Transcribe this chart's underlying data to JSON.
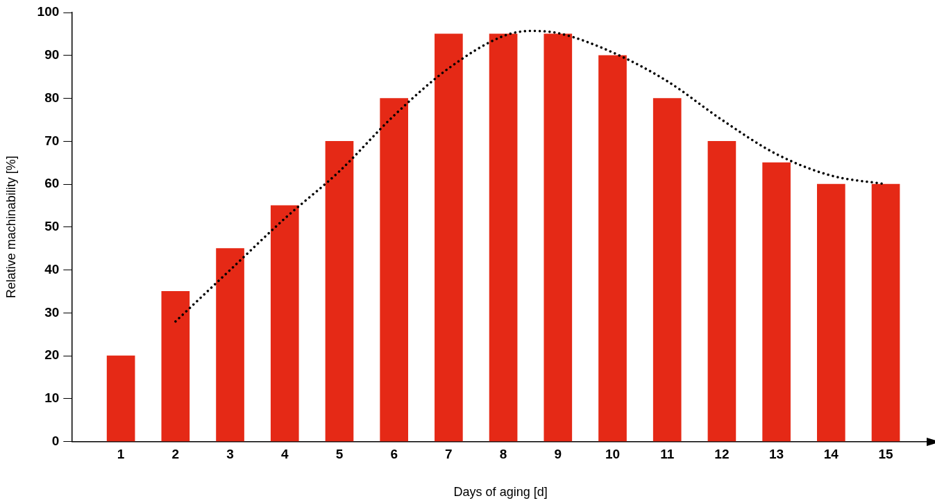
{
  "chart_data": {
    "type": "bar",
    "xlabel": "Days of aging [d]",
    "ylabel": "Relative machinability [%]",
    "x": [
      1,
      2,
      3,
      4,
      5,
      6,
      7,
      8,
      9,
      10,
      11,
      12,
      13,
      14,
      15
    ],
    "xlim": [
      0.1,
      15.8
    ],
    "xticks": [
      1,
      2,
      3,
      4,
      5,
      6,
      7,
      8,
      9,
      10,
      11,
      12,
      13,
      14,
      15
    ],
    "ylim": [
      0,
      100
    ],
    "yticks": [
      0,
      10,
      20,
      30,
      40,
      50,
      60,
      70,
      80,
      90,
      100
    ],
    "grid": false,
    "legend": false,
    "series": [
      {
        "color": "#e52916",
        "values": [
          20,
          35,
          45,
          55,
          70,
          80,
          95,
          95,
          95,
          90,
          80,
          70,
          65,
          60,
          60
        ]
      },
      {
        "type": "line",
        "color": "#000000",
        "line_style": "dotted",
        "marker": "none",
        "x": [
          2,
          3,
          4,
          5,
          6,
          7,
          8,
          8.5,
          9,
          10,
          11,
          12,
          13,
          14,
          15
        ],
        "values": [
          28,
          40,
          52,
          63,
          76,
          87,
          94.5,
          95.7,
          95.2,
          90.7,
          84,
          75,
          67,
          62,
          60
        ]
      }
    ]
  }
}
